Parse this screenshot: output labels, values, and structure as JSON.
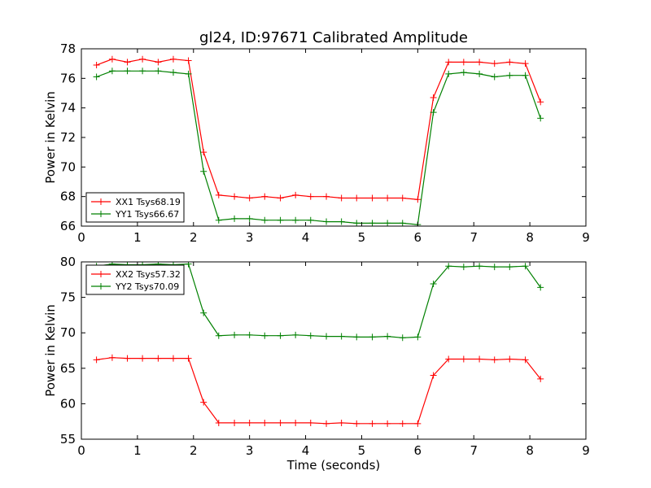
{
  "figure": {
    "title": "gl24, ID:97671 Calibrated Amplitude"
  },
  "chart_data": [
    {
      "type": "line",
      "title": "gl24, ID:97671 Calibrated Amplitude",
      "xlabel": "",
      "ylabel": "Power in Kelvin",
      "xlim": [
        0,
        9
      ],
      "ylim": [
        66,
        78
      ],
      "xticks": [
        0,
        1,
        2,
        3,
        4,
        5,
        6,
        7,
        8,
        9
      ],
      "yticks": [
        66,
        68,
        70,
        72,
        74,
        76,
        78
      ],
      "grid": false,
      "legend_position": "lower-left",
      "x": [
        0.27,
        0.55,
        0.82,
        1.09,
        1.37,
        1.64,
        1.91,
        2.18,
        2.45,
        2.73,
        3.0,
        3.27,
        3.55,
        3.82,
        4.09,
        4.37,
        4.64,
        4.91,
        5.19,
        5.46,
        5.73,
        6.0,
        6.28,
        6.55,
        6.82,
        7.1,
        7.37,
        7.64,
        7.92,
        8.19
      ],
      "series": [
        {
          "name": "XX1 Tsys68.19",
          "color": "#ff0000",
          "values": [
            76.9,
            77.3,
            77.1,
            77.3,
            77.1,
            77.3,
            77.2,
            71.0,
            68.1,
            68.0,
            67.9,
            68.0,
            67.9,
            68.1,
            68.0,
            68.0,
            67.9,
            67.9,
            67.9,
            67.9,
            67.9,
            67.8,
            74.7,
            77.1,
            77.1,
            77.1,
            77.0,
            77.1,
            77.0,
            74.4
          ]
        },
        {
          "name": "YY1 Tsys66.67",
          "color": "#008000",
          "values": [
            76.1,
            76.5,
            76.5,
            76.5,
            76.5,
            76.4,
            76.3,
            69.7,
            66.4,
            66.5,
            66.5,
            66.4,
            66.4,
            66.4,
            66.4,
            66.3,
            66.3,
            66.2,
            66.2,
            66.2,
            66.2,
            66.1,
            73.7,
            76.3,
            76.4,
            76.3,
            76.1,
            76.2,
            76.2,
            73.3
          ]
        }
      ]
    },
    {
      "type": "line",
      "title": "",
      "xlabel": "Time (seconds)",
      "ylabel": "Power in Kelvin",
      "xlim": [
        0,
        9
      ],
      "ylim": [
        55,
        80
      ],
      "xticks": [
        0,
        1,
        2,
        3,
        4,
        5,
        6,
        7,
        8,
        9
      ],
      "yticks": [
        55,
        60,
        65,
        70,
        75,
        80
      ],
      "grid": false,
      "legend_position": "upper-left",
      "x": [
        0.27,
        0.55,
        0.82,
        1.09,
        1.37,
        1.64,
        1.91,
        2.18,
        2.45,
        2.73,
        3.0,
        3.27,
        3.55,
        3.82,
        4.09,
        4.37,
        4.64,
        4.91,
        5.19,
        5.46,
        5.73,
        6.0,
        6.28,
        6.55,
        6.82,
        7.1,
        7.37,
        7.64,
        7.92,
        8.19
      ],
      "series": [
        {
          "name": "XX2 Tsys57.32",
          "color": "#ff0000",
          "values": [
            66.2,
            66.5,
            66.4,
            66.4,
            66.4,
            66.4,
            66.4,
            60.2,
            57.3,
            57.3,
            57.3,
            57.3,
            57.3,
            57.3,
            57.3,
            57.2,
            57.3,
            57.2,
            57.2,
            57.2,
            57.2,
            57.2,
            64.0,
            66.3,
            66.3,
            66.3,
            66.2,
            66.3,
            66.2,
            63.5
          ]
        },
        {
          "name": "YY2 Tsys70.09",
          "color": "#008000",
          "values": [
            79.4,
            79.7,
            79.6,
            79.6,
            79.7,
            79.6,
            79.7,
            72.8,
            69.6,
            69.7,
            69.7,
            69.6,
            69.6,
            69.7,
            69.6,
            69.5,
            69.5,
            69.4,
            69.4,
            69.5,
            69.3,
            69.4,
            76.9,
            79.4,
            79.3,
            79.4,
            79.3,
            79.3,
            79.4,
            76.4
          ]
        }
      ]
    }
  ]
}
